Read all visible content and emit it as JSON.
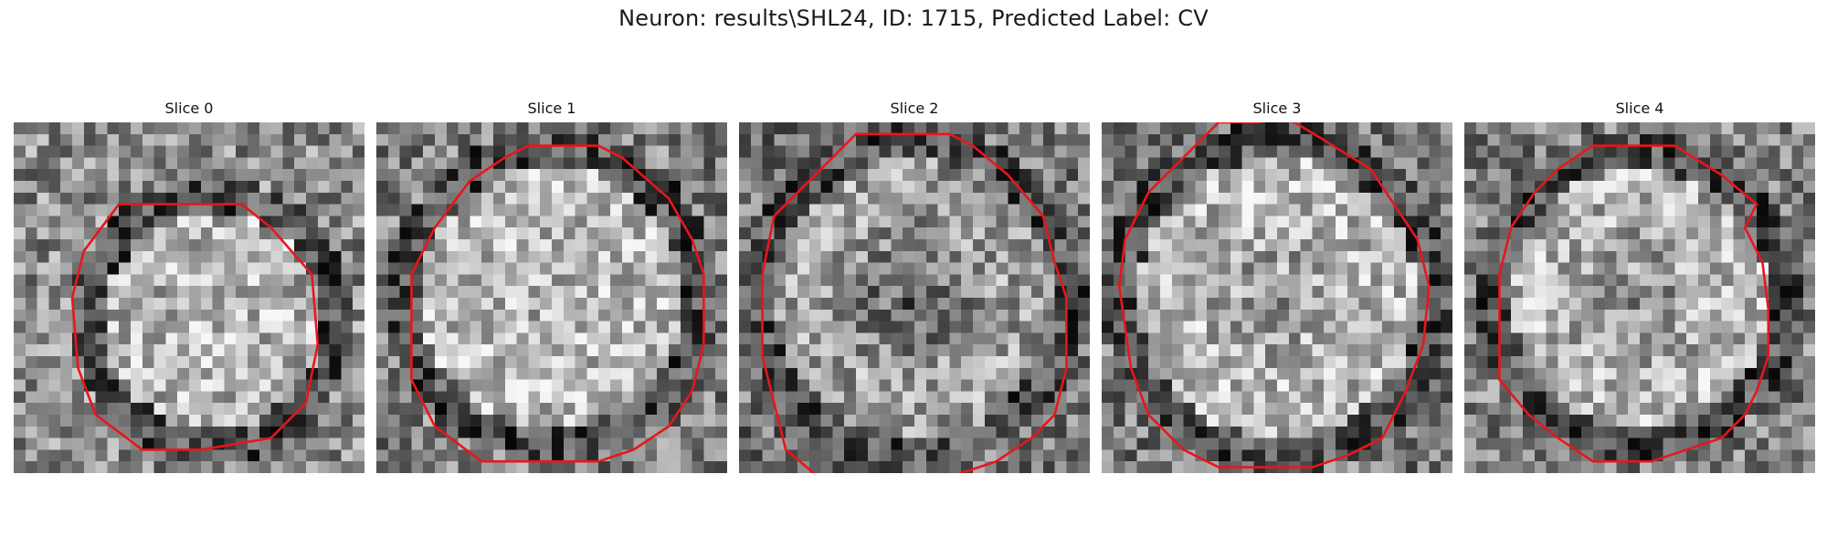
{
  "figure": {
    "title": "Neuron: results\\SHL24, ID: 1715, Predicted Label: CV"
  },
  "colors": {
    "contour": "#e8161b",
    "background": "#ffffff"
  },
  "panels": [
    {
      "title": "Slice 0"
    },
    {
      "title": "Slice 1"
    },
    {
      "title": "Slice 2"
    },
    {
      "title": "Slice 3"
    },
    {
      "title": "Slice 4"
    }
  ]
}
